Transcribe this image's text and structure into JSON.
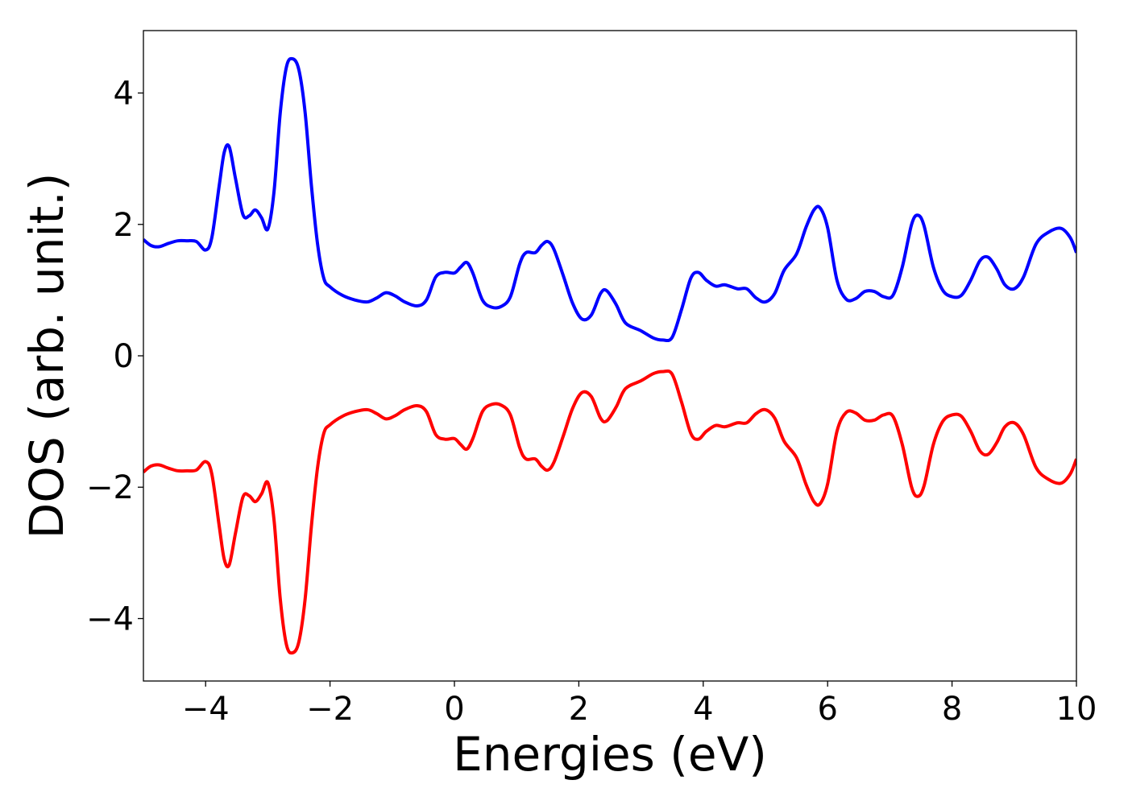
{
  "chart_data": {
    "type": "line",
    "xlabel": "Energies (eV)",
    "ylabel": "DOS (arb. unit.)",
    "xlim": [
      -5,
      10
    ],
    "ylim": [
      -4.95,
      4.95
    ],
    "xticks": [
      -4,
      -2,
      0,
      2,
      4,
      6,
      8,
      10
    ],
    "yticks": [
      -4,
      -2,
      0,
      2,
      4
    ],
    "xtick_labels": [
      "−4",
      "−2",
      "0",
      "2",
      "4",
      "6",
      "8",
      "10"
    ],
    "ytick_labels": [
      "−4",
      "−2",
      "0",
      "2",
      "4"
    ],
    "grid": false,
    "legend": "none",
    "series": [
      {
        "color": "#0000ff",
        "points": [
          [
            -5.0,
            1.77
          ],
          [
            -4.88,
            1.68
          ],
          [
            -4.75,
            1.66
          ],
          [
            -4.6,
            1.71
          ],
          [
            -4.45,
            1.75
          ],
          [
            -4.3,
            1.75
          ],
          [
            -4.15,
            1.74
          ],
          [
            -4.0,
            1.61
          ],
          [
            -3.9,
            1.8
          ],
          [
            -3.78,
            2.6
          ],
          [
            -3.7,
            3.1
          ],
          [
            -3.62,
            3.18
          ],
          [
            -3.52,
            2.7
          ],
          [
            -3.4,
            2.15
          ],
          [
            -3.3,
            2.13
          ],
          [
            -3.2,
            2.22
          ],
          [
            -3.1,
            2.1
          ],
          [
            -3.0,
            1.93
          ],
          [
            -2.9,
            2.5
          ],
          [
            -2.8,
            3.7
          ],
          [
            -2.7,
            4.4
          ],
          [
            -2.6,
            4.52
          ],
          [
            -2.5,
            4.35
          ],
          [
            -2.4,
            3.7
          ],
          [
            -2.3,
            2.6
          ],
          [
            -2.2,
            1.7
          ],
          [
            -2.1,
            1.18
          ],
          [
            -2.0,
            1.05
          ],
          [
            -1.8,
            0.92
          ],
          [
            -1.6,
            0.85
          ],
          [
            -1.4,
            0.82
          ],
          [
            -1.25,
            0.88
          ],
          [
            -1.1,
            0.96
          ],
          [
            -0.95,
            0.91
          ],
          [
            -0.8,
            0.82
          ],
          [
            -0.6,
            0.76
          ],
          [
            -0.45,
            0.85
          ],
          [
            -0.3,
            1.2
          ],
          [
            -0.15,
            1.27
          ],
          [
            0.0,
            1.26
          ],
          [
            0.1,
            1.35
          ],
          [
            0.2,
            1.42
          ],
          [
            0.3,
            1.25
          ],
          [
            0.45,
            0.85
          ],
          [
            0.6,
            0.74
          ],
          [
            0.75,
            0.75
          ],
          [
            0.9,
            0.9
          ],
          [
            1.05,
            1.4
          ],
          [
            1.15,
            1.57
          ],
          [
            1.3,
            1.57
          ],
          [
            1.4,
            1.68
          ],
          [
            1.5,
            1.74
          ],
          [
            1.6,
            1.62
          ],
          [
            1.75,
            1.22
          ],
          [
            1.9,
            0.8
          ],
          [
            2.05,
            0.56
          ],
          [
            2.2,
            0.62
          ],
          [
            2.35,
            0.95
          ],
          [
            2.45,
            0.99
          ],
          [
            2.6,
            0.78
          ],
          [
            2.75,
            0.5
          ],
          [
            3.0,
            0.38
          ],
          [
            3.2,
            0.27
          ],
          [
            3.35,
            0.24
          ],
          [
            3.5,
            0.28
          ],
          [
            3.65,
            0.7
          ],
          [
            3.8,
            1.18
          ],
          [
            3.92,
            1.27
          ],
          [
            4.05,
            1.15
          ],
          [
            4.2,
            1.06
          ],
          [
            4.35,
            1.08
          ],
          [
            4.55,
            1.02
          ],
          [
            4.7,
            1.02
          ],
          [
            4.85,
            0.88
          ],
          [
            5.0,
            0.82
          ],
          [
            5.15,
            0.95
          ],
          [
            5.3,
            1.3
          ],
          [
            5.5,
            1.55
          ],
          [
            5.65,
            1.95
          ],
          [
            5.78,
            2.22
          ],
          [
            5.88,
            2.25
          ],
          [
            6.0,
            1.95
          ],
          [
            6.15,
            1.15
          ],
          [
            6.3,
            0.86
          ],
          [
            6.45,
            0.87
          ],
          [
            6.6,
            0.98
          ],
          [
            6.75,
            0.98
          ],
          [
            6.9,
            0.9
          ],
          [
            7.05,
            0.92
          ],
          [
            7.2,
            1.35
          ],
          [
            7.35,
            2.0
          ],
          [
            7.45,
            2.14
          ],
          [
            7.55,
            1.98
          ],
          [
            7.7,
            1.35
          ],
          [
            7.85,
            1.0
          ],
          [
            8.0,
            0.9
          ],
          [
            8.15,
            0.92
          ],
          [
            8.3,
            1.15
          ],
          [
            8.45,
            1.45
          ],
          [
            8.58,
            1.5
          ],
          [
            8.72,
            1.32
          ],
          [
            8.85,
            1.08
          ],
          [
            9.0,
            1.02
          ],
          [
            9.15,
            1.2
          ],
          [
            9.35,
            1.7
          ],
          [
            9.55,
            1.88
          ],
          [
            9.75,
            1.94
          ],
          [
            9.9,
            1.8
          ],
          [
            10.0,
            1.57
          ]
        ]
      },
      {
        "color": "#ff0000",
        "points": [
          [
            -5.0,
            -1.77
          ],
          [
            -4.88,
            -1.68
          ],
          [
            -4.75,
            -1.66
          ],
          [
            -4.6,
            -1.71
          ],
          [
            -4.45,
            -1.75
          ],
          [
            -4.3,
            -1.75
          ],
          [
            -4.15,
            -1.74
          ],
          [
            -4.0,
            -1.61
          ],
          [
            -3.9,
            -1.8
          ],
          [
            -3.78,
            -2.6
          ],
          [
            -3.7,
            -3.1
          ],
          [
            -3.62,
            -3.18
          ],
          [
            -3.52,
            -2.7
          ],
          [
            -3.4,
            -2.15
          ],
          [
            -3.3,
            -2.13
          ],
          [
            -3.2,
            -2.22
          ],
          [
            -3.1,
            -2.1
          ],
          [
            -3.0,
            -1.93
          ],
          [
            -2.9,
            -2.5
          ],
          [
            -2.8,
            -3.7
          ],
          [
            -2.7,
            -4.4
          ],
          [
            -2.6,
            -4.52
          ],
          [
            -2.5,
            -4.35
          ],
          [
            -2.4,
            -3.7
          ],
          [
            -2.3,
            -2.6
          ],
          [
            -2.2,
            -1.7
          ],
          [
            -2.1,
            -1.18
          ],
          [
            -2.0,
            -1.05
          ],
          [
            -1.8,
            -0.92
          ],
          [
            -1.6,
            -0.85
          ],
          [
            -1.4,
            -0.82
          ],
          [
            -1.25,
            -0.88
          ],
          [
            -1.1,
            -0.96
          ],
          [
            -0.95,
            -0.91
          ],
          [
            -0.8,
            -0.82
          ],
          [
            -0.6,
            -0.76
          ],
          [
            -0.45,
            -0.85
          ],
          [
            -0.3,
            -1.2
          ],
          [
            -0.15,
            -1.27
          ],
          [
            0.0,
            -1.26
          ],
          [
            0.1,
            -1.35
          ],
          [
            0.2,
            -1.42
          ],
          [
            0.3,
            -1.25
          ],
          [
            0.45,
            -0.85
          ],
          [
            0.6,
            -0.74
          ],
          [
            0.75,
            -0.75
          ],
          [
            0.9,
            -0.9
          ],
          [
            1.05,
            -1.4
          ],
          [
            1.15,
            -1.57
          ],
          [
            1.3,
            -1.57
          ],
          [
            1.4,
            -1.68
          ],
          [
            1.5,
            -1.74
          ],
          [
            1.6,
            -1.62
          ],
          [
            1.75,
            -1.22
          ],
          [
            1.9,
            -0.8
          ],
          [
            2.05,
            -0.56
          ],
          [
            2.2,
            -0.62
          ],
          [
            2.35,
            -0.95
          ],
          [
            2.45,
            -0.99
          ],
          [
            2.6,
            -0.78
          ],
          [
            2.75,
            -0.5
          ],
          [
            3.0,
            -0.38
          ],
          [
            3.2,
            -0.27
          ],
          [
            3.35,
            -0.24
          ],
          [
            3.5,
            -0.28
          ],
          [
            3.65,
            -0.7
          ],
          [
            3.8,
            -1.18
          ],
          [
            3.92,
            -1.27
          ],
          [
            4.05,
            -1.15
          ],
          [
            4.2,
            -1.06
          ],
          [
            4.35,
            -1.08
          ],
          [
            4.55,
            -1.02
          ],
          [
            4.7,
            -1.02
          ],
          [
            4.85,
            -0.88
          ],
          [
            5.0,
            -0.82
          ],
          [
            5.15,
            -0.95
          ],
          [
            5.3,
            -1.3
          ],
          [
            5.5,
            -1.55
          ],
          [
            5.65,
            -1.95
          ],
          [
            5.78,
            -2.22
          ],
          [
            5.88,
            -2.25
          ],
          [
            6.0,
            -1.95
          ],
          [
            6.15,
            -1.15
          ],
          [
            6.3,
            -0.86
          ],
          [
            6.45,
            -0.87
          ],
          [
            6.6,
            -0.98
          ],
          [
            6.75,
            -0.98
          ],
          [
            6.9,
            -0.9
          ],
          [
            7.05,
            -0.92
          ],
          [
            7.2,
            -1.35
          ],
          [
            7.35,
            -2.0
          ],
          [
            7.45,
            -2.14
          ],
          [
            7.55,
            -1.98
          ],
          [
            7.7,
            -1.35
          ],
          [
            7.85,
            -1.0
          ],
          [
            8.0,
            -0.9
          ],
          [
            8.15,
            -0.92
          ],
          [
            8.3,
            -1.15
          ],
          [
            8.45,
            -1.45
          ],
          [
            8.58,
            -1.5
          ],
          [
            8.72,
            -1.32
          ],
          [
            8.85,
            -1.08
          ],
          [
            9.0,
            -1.02
          ],
          [
            9.15,
            -1.2
          ],
          [
            9.35,
            -1.7
          ],
          [
            9.55,
            -1.88
          ],
          [
            9.75,
            -1.94
          ],
          [
            9.9,
            -1.8
          ],
          [
            10.0,
            -1.57
          ]
        ]
      }
    ]
  }
}
